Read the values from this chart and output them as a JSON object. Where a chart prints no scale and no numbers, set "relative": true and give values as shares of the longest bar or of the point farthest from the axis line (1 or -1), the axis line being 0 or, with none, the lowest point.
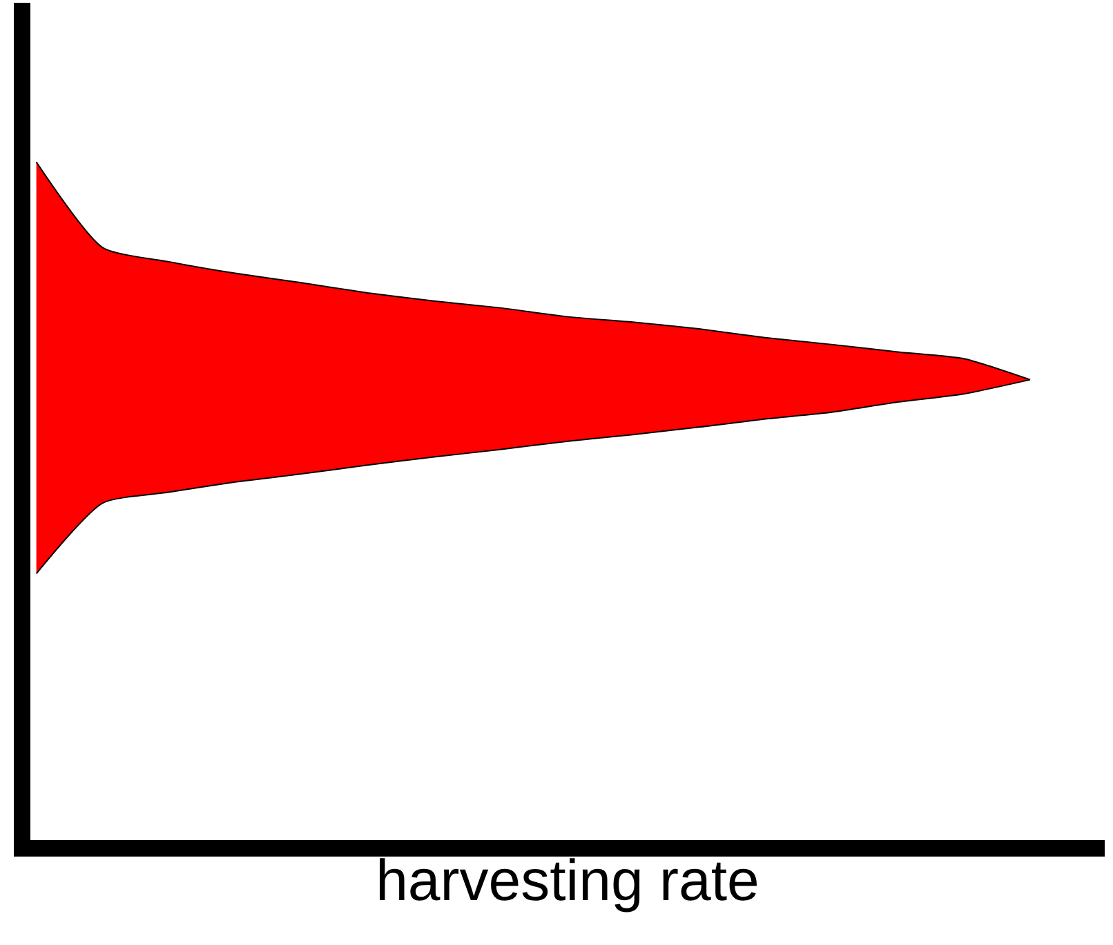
{
  "chart_data": {
    "type": "area",
    "xlabel": "harvesting rate",
    "relative": true,
    "tick_labels": false,
    "categories": [
      null,
      null,
      null,
      null,
      null,
      null,
      null,
      null,
      null,
      null,
      null,
      null,
      null,
      null,
      null,
      null
    ],
    "series": [
      {
        "type": "line",
        "color": "#000000",
        "values": [
          0.393,
          0.497,
          0.513,
          0.528,
          0.54,
          0.553,
          0.565,
          0.576,
          0.588,
          0.598,
          0.609,
          0.621,
          0.631,
          0.646,
          0.658,
          0.679
        ]
      },
      {
        "color": "#ff0000",
        "values": [
          1.0,
          0.874,
          0.853,
          0.836,
          0.822,
          0.807,
          0.795,
          0.785,
          0.772,
          0.764,
          0.754,
          0.741,
          0.731,
          0.72,
          0.71,
          0.679
        ]
      }
    ]
  }
}
